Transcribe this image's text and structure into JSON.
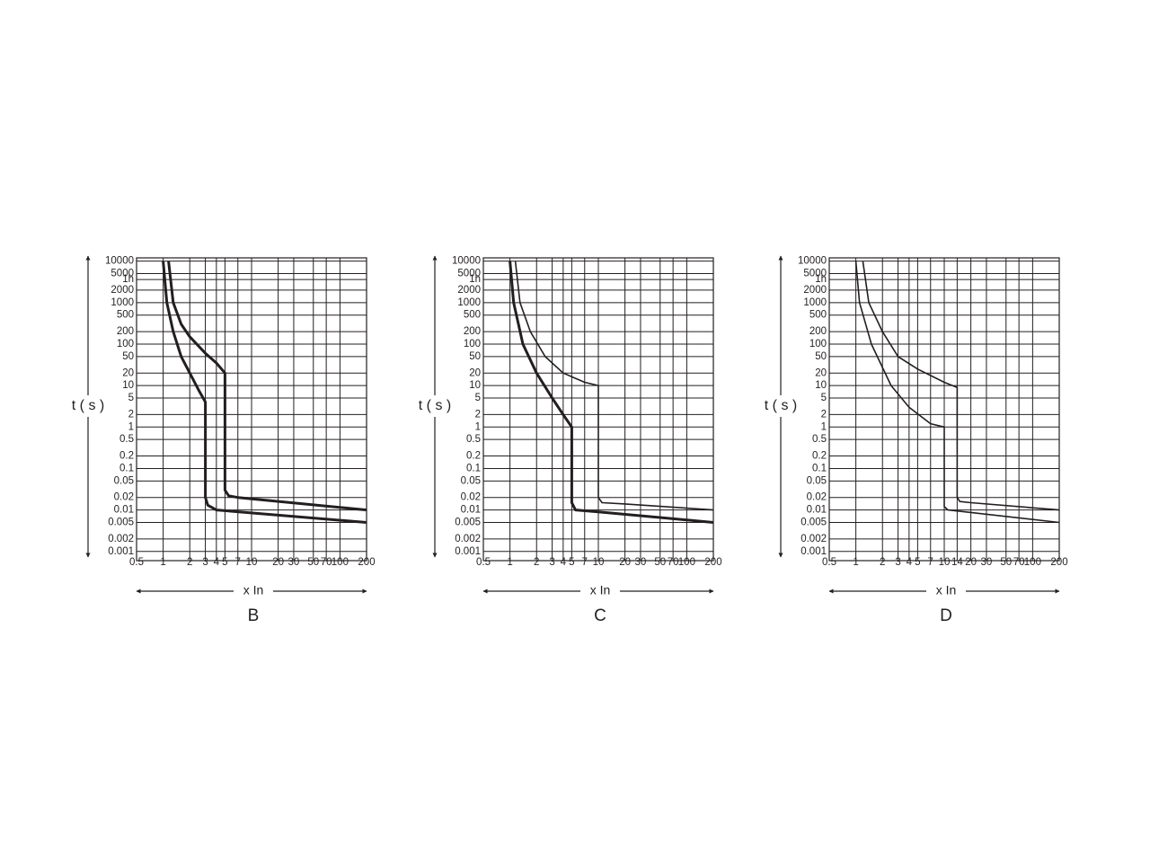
{
  "chart_data": [
    {
      "type": "line",
      "title": "B",
      "xlabel": "x In",
      "ylabel": "t ( s )",
      "xscale": "log",
      "yscale": "log",
      "grid": true,
      "xlim": [
        0.5,
        200
      ],
      "ylim": [
        0.0006,
        12000
      ],
      "xticks": [
        0.5,
        1,
        2,
        3,
        4,
        5,
        7,
        10,
        20,
        30,
        50,
        70,
        100,
        200
      ],
      "yticks": [
        10000,
        5000,
        {
          "value": 3600,
          "label": "1h"
        },
        2000,
        1000,
        500,
        200,
        100,
        50,
        20,
        10,
        5,
        2,
        1,
        0.5,
        0.2,
        0.1,
        0.05,
        0.02,
        0.01,
        0.005,
        0.002,
        0.001
      ],
      "series": [
        {
          "color": "#231f20",
          "line_width": 3,
          "x": [
            1,
            1.1,
            1.3,
            1.6,
            2,
            2.5,
            3,
            3,
            3.2,
            4,
            200
          ],
          "values": [
            10000,
            1000,
            200,
            50,
            20,
            8,
            4,
            0.02,
            0.013,
            0.01,
            0.005
          ]
        },
        {
          "color": "#231f20",
          "line_width": 3,
          "x": [
            1.15,
            1.3,
            1.6,
            2,
            3,
            4,
            5,
            5,
            5.5,
            7,
            200
          ],
          "values": [
            10000,
            1000,
            300,
            150,
            60,
            35,
            20,
            0.03,
            0.022,
            0.02,
            0.01
          ]
        }
      ]
    },
    {
      "type": "line",
      "title": "C",
      "xlabel": "x In",
      "ylabel": "t ( s )",
      "xscale": "log",
      "yscale": "log",
      "grid": true,
      "xlim": [
        0.5,
        200
      ],
      "ylim": [
        0.0006,
        12000
      ],
      "xticks": [
        0.5,
        1,
        2,
        3,
        4,
        5,
        7,
        10,
        20,
        30,
        50,
        70,
        100,
        200
      ],
      "yticks": [
        10000,
        5000,
        {
          "value": 3600,
          "label": "1h"
        },
        2000,
        1000,
        500,
        200,
        100,
        50,
        20,
        10,
        5,
        2,
        1,
        0.5,
        0.2,
        0.1,
        0.05,
        0.02,
        0.01,
        0.005,
        0.002,
        0.001
      ],
      "series": [
        {
          "color": "#231f20",
          "line_width": 3,
          "x": [
            1,
            1.1,
            1.4,
            2,
            3,
            4,
            5,
            5,
            5.5,
            10,
            200
          ],
          "values": [
            10000,
            1000,
            100,
            20,
            5,
            2,
            1,
            0.015,
            0.01,
            0.009,
            0.005
          ]
        },
        {
          "color": "#231f20",
          "line_width": 1.6,
          "x": [
            1.15,
            1.3,
            1.7,
            2.5,
            4,
            7,
            10,
            10,
            11,
            20,
            200
          ],
          "values": [
            10000,
            1000,
            200,
            50,
            20,
            12,
            10,
            0.02,
            0.015,
            0.014,
            0.01
          ]
        }
      ]
    },
    {
      "type": "line",
      "title": "D",
      "xlabel": "x In",
      "ylabel": "t ( s )",
      "xscale": "log",
      "yscale": "log",
      "grid": true,
      "xlim": [
        0.5,
        200
      ],
      "ylim": [
        0.0006,
        12000
      ],
      "xticks": [
        0.5,
        1,
        2,
        3,
        4,
        5,
        7,
        10,
        14,
        20,
        30,
        50,
        70,
        100,
        200
      ],
      "yticks": [
        10000,
        5000,
        {
          "value": 3600,
          "label": "1h"
        },
        2000,
        1000,
        500,
        200,
        100,
        50,
        20,
        10,
        5,
        2,
        1,
        0.5,
        0.2,
        0.1,
        0.05,
        0.02,
        0.01,
        0.005,
        0.002,
        0.001
      ],
      "series": [
        {
          "color": "#231f20",
          "line_width": 1.6,
          "x": [
            1,
            1.1,
            1.5,
            2.5,
            4,
            7,
            10,
            10,
            11,
            200
          ],
          "values": [
            10000,
            1000,
            100,
            10,
            3,
            1.2,
            1,
            0.012,
            0.01,
            0.005
          ]
        },
        {
          "color": "#231f20",
          "line_width": 1.6,
          "x": [
            1.2,
            1.4,
            2,
            3,
            5,
            10,
            14,
            14,
            15,
            20,
            200
          ],
          "values": [
            10000,
            1000,
            200,
            50,
            25,
            12,
            9,
            0.02,
            0.016,
            0.015,
            0.01
          ]
        }
      ]
    }
  ]
}
